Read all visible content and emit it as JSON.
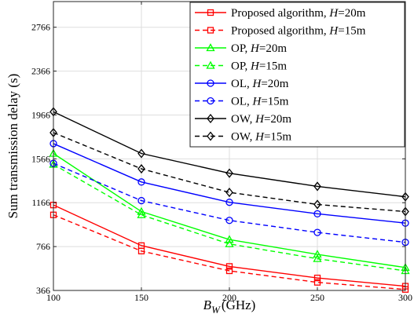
{
  "chart_data": {
    "type": "line",
    "xlabel": "GHz",
    "xlabel_symbol": "B",
    "xlabel_subscript": "W",
    "ylabel": "Sum transmission delay (s)",
    "x": [
      100,
      150,
      200,
      250,
      300
    ],
    "xticks": [
      "100",
      "150",
      "200",
      "250",
      "300"
    ],
    "yticks": [
      "366",
      "766",
      "1166",
      "1566",
      "1966",
      "2366",
      "2766"
    ],
    "xlim": [
      100,
      300
    ],
    "ylim": [
      366,
      3000
    ],
    "grid": true,
    "legend_position": "top-right",
    "series": [
      {
        "name": "Proposed algorithm, H=20m",
        "label_text": "Proposed algorithm, ",
        "label_h": "H",
        "label_tail": "=20m",
        "color": "#ff0000",
        "marker": "square",
        "dash": "solid",
        "values": [
          1145,
          775,
          585,
          480,
          405
        ]
      },
      {
        "name": "Proposed algorithm, H=15m",
        "label_text": "Proposed algorithm, ",
        "label_h": "H",
        "label_tail": "=15m",
        "color": "#ff0000",
        "marker": "square",
        "dash": "dashed",
        "values": [
          1055,
          725,
          545,
          440,
          375
        ]
      },
      {
        "name": "OP, H=20m",
        "label_text": "OP, ",
        "label_h": "H",
        "label_tail": "=20m",
        "color": "#00ff00",
        "marker": "triangle",
        "dash": "solid",
        "values": [
          1615,
          1085,
          830,
          695,
          575
        ]
      },
      {
        "name": "OP, H=15m",
        "label_text": "OP, ",
        "label_h": "H",
        "label_tail": "=15m",
        "color": "#00ff00",
        "marker": "triangle",
        "dash": "dashed",
        "values": [
          1515,
          1055,
          790,
          655,
          545
        ]
      },
      {
        "name": "OL, H=20m",
        "label_text": "OL, ",
        "label_h": "H",
        "label_tail": "=20m",
        "color": "#0000ff",
        "marker": "circle",
        "dash": "solid",
        "values": [
          1705,
          1355,
          1170,
          1065,
          980
        ]
      },
      {
        "name": "OL, H=15m",
        "label_text": "OL, ",
        "label_h": "H",
        "label_tail": "=15m",
        "color": "#0000ff",
        "marker": "circle",
        "dash": "dashed",
        "values": [
          1525,
          1185,
          1005,
          895,
          805
        ]
      },
      {
        "name": "OW, H=20m",
        "label_text": "OW, ",
        "label_h": "H",
        "label_tail": "=20m",
        "color": "#000000",
        "marker": "diamond",
        "dash": "solid",
        "values": [
          1995,
          1615,
          1435,
          1315,
          1220
        ]
      },
      {
        "name": "OW, H=15m",
        "label_text": "OW, ",
        "label_h": "H",
        "label_tail": "=15m",
        "color": "#000000",
        "marker": "diamond",
        "dash": "dashed",
        "values": [
          1805,
          1475,
          1260,
          1150,
          1085
        ]
      }
    ]
  }
}
